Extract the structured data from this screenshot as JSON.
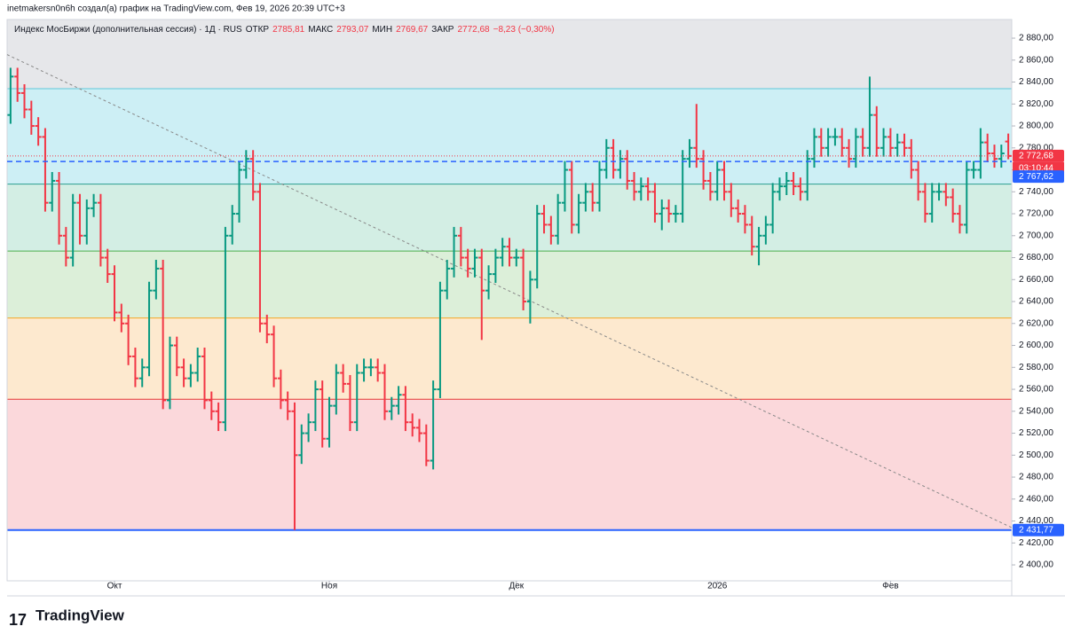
{
  "header": {
    "credit": "inetmakersn0n6h создал(а) график на TradingView.com, Фев 19, 2026 20:39 UTC+3",
    "logo": "TradingView"
  },
  "chart_data": {
    "type": "ohlc",
    "symbol": "Индекс МосБиржи (дополнительная сессия) · 1Д · RUS",
    "legend": {
      "open_label": "ОТКР",
      "open": "2785,81",
      "high_label": "МАКС",
      "high": "2793,07",
      "low_label": "МИН",
      "low": "2769,67",
      "close_label": "ЗАКР",
      "close": "2772,68",
      "change": "−8,23 (−0,30%)"
    },
    "up_color": "#089981",
    "down_color": "#f23645",
    "open": [
      2810,
      2845,
      2830,
      2815,
      2800,
      2790,
      2730,
      2750,
      2700,
      2680,
      2730,
      2700,
      2725,
      2730,
      2680,
      2665,
      2630,
      2620,
      2590,
      2570,
      2580,
      2650,
      2670,
      2550,
      2600,
      2580,
      2570,
      2575,
      2590,
      2550,
      2540,
      2530,
      2700,
      2720,
      2760,
      2770,
      2740,
      2620,
      2610,
      2570,
      2550,
      2540,
      2500,
      2520,
      2530,
      2560,
      2515,
      2545,
      2575,
      2565,
      2530,
      2575,
      2580,
      2580,
      2575,
      2540,
      2545,
      2555,
      2530,
      2525,
      2520,
      2495,
      2560,
      2650,
      2670,
      2700,
      2680,
      2670,
      2680,
      2650,
      2665,
      2680,
      2690,
      2680,
      2680,
      2640,
      2660,
      2720,
      2710,
      2700,
      2730,
      2760,
      2710,
      2730,
      2740,
      2730,
      2760,
      2780,
      2760,
      2770,
      2750,
      2740,
      2745,
      2740,
      2720,
      2725,
      2720,
      2720,
      2770,
      2780,
      2770,
      2750,
      2740,
      2760,
      2740,
      2725,
      2720,
      2710,
      2690,
      2700,
      2710,
      2740,
      2745,
      2750,
      2745,
      2740,
      2770,
      2790,
      2780,
      2790,
      2790,
      2780,
      2770,
      2790,
      2780,
      2810,
      2780,
      2790,
      2780,
      2785,
      2780,
      2760,
      2740,
      2720,
      2740,
      2740,
      2735,
      2720,
      2710,
      2760,
      2760,
      2785,
      2775,
      2770,
      2785.81
    ],
    "high": [
      2853,
      2853,
      2838,
      2823,
      2808,
      2798,
      2758,
      2758,
      2708,
      2738,
      2738,
      2733,
      2738,
      2738,
      2688,
      2673,
      2638,
      2628,
      2598,
      2588,
      2658,
      2678,
      2678,
      2608,
      2608,
      2588,
      2583,
      2598,
      2598,
      2558,
      2548,
      2708,
      2728,
      2768,
      2778,
      2778,
      2748,
      2628,
      2618,
      2578,
      2558,
      2548,
      2528,
      2538,
      2568,
      2568,
      2553,
      2583,
      2583,
      2573,
      2583,
      2588,
      2588,
      2588,
      2583,
      2553,
      2563,
      2563,
      2538,
      2533,
      2528,
      2568,
      2658,
      2678,
      2708,
      2708,
      2688,
      2688,
      2688,
      2673,
      2688,
      2698,
      2698,
      2688,
      2688,
      2668,
      2728,
      2728,
      2718,
      2738,
      2768,
      2768,
      2738,
      2748,
      2748,
      2768,
      2788,
      2788,
      2778,
      2778,
      2758,
      2753,
      2753,
      2748,
      2733,
      2733,
      2728,
      2778,
      2788,
      2820,
      2778,
      2758,
      2768,
      2768,
      2748,
      2733,
      2728,
      2718,
      2708,
      2718,
      2748,
      2753,
      2758,
      2758,
      2753,
      2778,
      2798,
      2798,
      2798,
      2798,
      2798,
      2788,
      2798,
      2798,
      2845,
      2818,
      2798,
      2798,
      2793,
      2793,
      2788,
      2768,
      2748,
      2748,
      2748,
      2748,
      2743,
      2728,
      2768,
      2768,
      2798,
      2793,
      2783,
      2783,
      2793.07
    ],
    "low": [
      2802,
      2822,
      2807,
      2792,
      2782,
      2722,
      2722,
      2692,
      2672,
      2672,
      2692,
      2692,
      2717,
      2672,
      2657,
      2622,
      2612,
      2582,
      2562,
      2562,
      2572,
      2642,
      2542,
      2542,
      2572,
      2562,
      2562,
      2567,
      2542,
      2532,
      2522,
      2522,
      2692,
      2712,
      2752,
      2732,
      2612,
      2602,
      2562,
      2542,
      2532,
      2431.77,
      2492,
      2512,
      2522,
      2507,
      2507,
      2537,
      2557,
      2522,
      2522,
      2567,
      2572,
      2567,
      2532,
      2532,
      2537,
      2522,
      2517,
      2512,
      2490,
      2487,
      2552,
      2642,
      2662,
      2672,
      2662,
      2662,
      2605,
      2642,
      2657,
      2672,
      2672,
      2672,
      2632,
      2620,
      2652,
      2702,
      2692,
      2692,
      2722,
      2702,
      2702,
      2722,
      2722,
      2722,
      2752,
      2752,
      2752,
      2742,
      2732,
      2732,
      2732,
      2712,
      2705,
      2712,
      2712,
      2712,
      2762,
      2762,
      2742,
      2732,
      2732,
      2732,
      2717,
      2712,
      2702,
      2682,
      2673,
      2692,
      2702,
      2732,
      2737,
      2737,
      2732,
      2732,
      2762,
      2772,
      2772,
      2782,
      2772,
      2762,
      2762,
      2772,
      2772,
      2772,
      2772,
      2772,
      2772,
      2772,
      2752,
      2732,
      2712,
      2712,
      2732,
      2727,
      2712,
      2702,
      2702,
      2752,
      2752,
      2767,
      2762,
      2762,
      2769.67
    ],
    "close": [
      2845,
      2830,
      2815,
      2800,
      2790,
      2730,
      2750,
      2700,
      2680,
      2730,
      2700,
      2725,
      2730,
      2680,
      2665,
      2630,
      2620,
      2590,
      2570,
      2580,
      2650,
      2670,
      2550,
      2600,
      2580,
      2570,
      2575,
      2590,
      2550,
      2540,
      2530,
      2700,
      2720,
      2760,
      2770,
      2740,
      2620,
      2610,
      2570,
      2550,
      2540,
      2500,
      2520,
      2530,
      2560,
      2515,
      2545,
      2575,
      2565,
      2530,
      2575,
      2580,
      2580,
      2575,
      2540,
      2545,
      2555,
      2530,
      2525,
      2520,
      2495,
      2560,
      2650,
      2670,
      2700,
      2680,
      2670,
      2680,
      2650,
      2665,
      2680,
      2690,
      2680,
      2680,
      2640,
      2660,
      2720,
      2710,
      2700,
      2730,
      2760,
      2710,
      2730,
      2740,
      2730,
      2760,
      2780,
      2760,
      2770,
      2750,
      2740,
      2745,
      2740,
      2720,
      2725,
      2720,
      2720,
      2770,
      2780,
      2770,
      2750,
      2740,
      2760,
      2740,
      2725,
      2720,
      2710,
      2690,
      2700,
      2710,
      2740,
      2745,
      2750,
      2745,
      2740,
      2770,
      2790,
      2780,
      2790,
      2790,
      2780,
      2770,
      2790,
      2780,
      2810,
      2780,
      2790,
      2780,
      2785,
      2780,
      2760,
      2740,
      2720,
      2740,
      2740,
      2735,
      2720,
      2710,
      2760,
      2760,
      2785,
      2775,
      2770,
      2775,
      2772.68
    ],
    "xticks": [
      {
        "value": 15,
        "label": "Окт"
      },
      {
        "value": 46,
        "label": "Ноя"
      },
      {
        "value": 73,
        "label": "Дек"
      },
      {
        "value": 102,
        "label": "2026"
      },
      {
        "value": 127,
        "label": "Фев"
      }
    ],
    "ylim": [
      2385.5,
      2897
    ],
    "yticks": [
      {
        "value": 2400,
        "label": "2 400,00"
      },
      {
        "value": 2420,
        "label": "2 420,00"
      },
      {
        "value": 2440,
        "label": "2 440,00"
      },
      {
        "value": 2460,
        "label": "2 460,00"
      },
      {
        "value": 2480,
        "label": "2 480,00"
      },
      {
        "value": 2500,
        "label": "2 500,00"
      },
      {
        "value": 2520,
        "label": "2 520,00"
      },
      {
        "value": 2540,
        "label": "2 540,00"
      },
      {
        "value": 2560,
        "label": "2 560,00"
      },
      {
        "value": 2580,
        "label": "2 580,00"
      },
      {
        "value": 2600,
        "label": "2 600,00"
      },
      {
        "value": 2620,
        "label": "2 620,00"
      },
      {
        "value": 2640,
        "label": "2 640,00"
      },
      {
        "value": 2660,
        "label": "2 660,00"
      },
      {
        "value": 2680,
        "label": "2 680,00"
      },
      {
        "value": 2700,
        "label": "2 700,00"
      },
      {
        "value": 2720,
        "label": "2 720,00"
      },
      {
        "value": 2740,
        "label": "2 740,00"
      },
      {
        "value": 2760,
        "label": "2 760,00"
      },
      {
        "value": 2780,
        "label": "2 780,00"
      },
      {
        "value": 2800,
        "label": "2 800,00"
      },
      {
        "value": 2820,
        "label": "2 820,00"
      },
      {
        "value": 2840,
        "label": "2 840,00"
      },
      {
        "value": 2860,
        "label": "2 860,00"
      },
      {
        "value": 2880,
        "label": "2 880,00"
      }
    ],
    "top_zone_color": "#e6e7ea",
    "fib_levels": [
      {
        "value": 2834,
        "line": "#5fc9d9",
        "fill": "#cdeff5"
      },
      {
        "value": 2747,
        "line": "#2a9d8f",
        "fill": "#d3eee4"
      },
      {
        "value": 2686,
        "line": "#4caf50",
        "fill": "#dcefd9"
      },
      {
        "value": 2625,
        "line": "#f5a623",
        "fill": "#fde9cf"
      },
      {
        "value": 2551,
        "line": "#e53935",
        "fill": "#fbd8db"
      },
      {
        "value": 2431.77,
        "line": "#2962ff",
        "fill": "#ffffff"
      }
    ],
    "trendline": [
      2865,
      2434
    ],
    "price_lines": [
      {
        "value": 2772.68,
        "label": "2 772,68",
        "color": "#f23645",
        "dash": "1 2"
      },
      {
        "value": 2767.62,
        "label": "2 767,62",
        "color": "#2962ff",
        "dash": "6 4"
      },
      {
        "value": 2431.77,
        "label": "2 431,77",
        "color": "#2962ff",
        "dash": ""
      }
    ],
    "countdown": "03:10:44"
  }
}
